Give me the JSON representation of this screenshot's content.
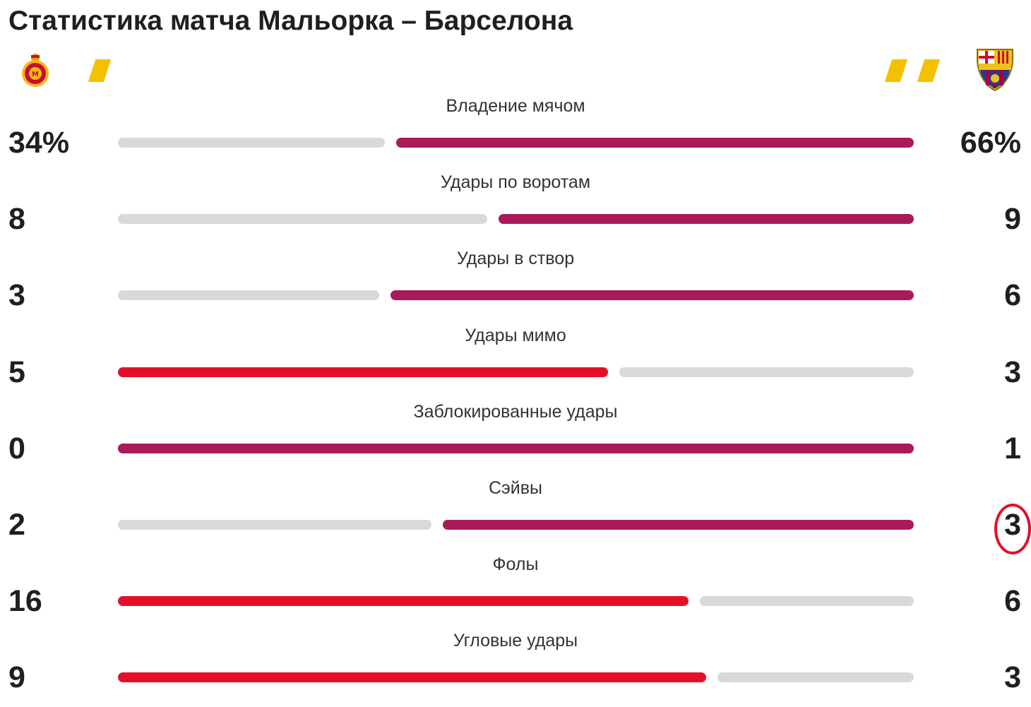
{
  "title": "Статистика матча Мальорка – Барселона",
  "teams": {
    "home": {
      "logo_icon": "mallorca-crest-icon",
      "cards": 1
    },
    "away": {
      "logo_icon": "barcelona-crest-icon",
      "cards": 2
    }
  },
  "colors": {
    "home_leader": "#e4102a",
    "away_leader": "#aa1a5a",
    "neutral": "#d9d9d9",
    "yellow_card": "#f5c000"
  },
  "stats": [
    {
      "label": "Владение мячом",
      "home": "34%",
      "away": "66%",
      "home_value": 34,
      "away_value": 66
    },
    {
      "label": "Удары по воротам",
      "home": "8",
      "away": "9",
      "home_value": 8,
      "away_value": 9
    },
    {
      "label": "Удары в створ",
      "home": "3",
      "away": "6",
      "home_value": 3,
      "away_value": 6
    },
    {
      "label": "Удары мимо",
      "home": "5",
      "away": "3",
      "home_value": 5,
      "away_value": 3
    },
    {
      "label": "Заблокированные удары",
      "home": "0",
      "away": "1",
      "home_value": 0,
      "away_value": 1
    },
    {
      "label": "Сэйвы",
      "home": "2",
      "away": "3",
      "home_value": 2,
      "away_value": 3,
      "away_highlighted": true
    },
    {
      "label": "Фолы",
      "home": "16",
      "away": "6",
      "home_value": 16,
      "away_value": 6
    },
    {
      "label": "Угловые удары",
      "home": "9",
      "away": "3",
      "home_value": 9,
      "away_value": 3
    }
  ]
}
